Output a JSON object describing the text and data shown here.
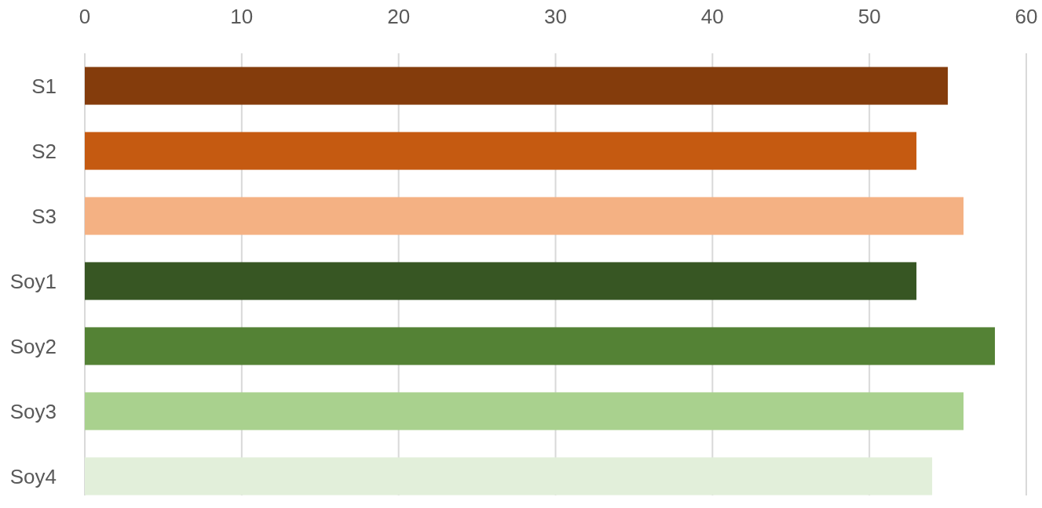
{
  "chart_data": {
    "type": "bar",
    "orientation": "horizontal",
    "categories": [
      "S1",
      "S2",
      "S3",
      "Soy1",
      "Soy2",
      "Soy3",
      "Soy4"
    ],
    "values": [
      55,
      53,
      56,
      53,
      58,
      56,
      54
    ],
    "colors": [
      "#843c0c",
      "#c55a11",
      "#f4b183",
      "#375623",
      "#548235",
      "#a9d18e",
      "#e2efda"
    ],
    "xlim": [
      0,
      60
    ],
    "xticks": [
      0,
      10,
      20,
      30,
      40,
      50,
      60
    ],
    "grid": "x"
  }
}
